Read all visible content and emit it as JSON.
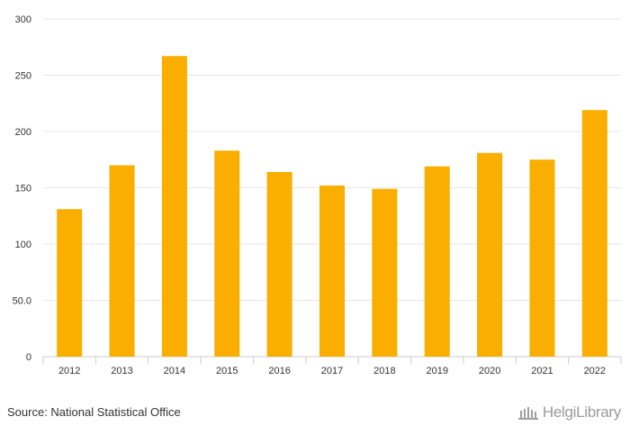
{
  "chart_data": {
    "type": "bar",
    "categories": [
      "2012",
      "2013",
      "2014",
      "2015",
      "2016",
      "2017",
      "2018",
      "2019",
      "2020",
      "2021",
      "2022"
    ],
    "values": [
      131,
      170,
      267,
      183,
      164,
      152,
      149,
      169,
      181,
      175,
      219
    ],
    "yticks": [
      "0",
      "50.0",
      "100",
      "150",
      "200",
      "250",
      "300"
    ],
    "ylim": [
      0,
      300
    ],
    "grid": true,
    "bar_color": "#F9AE00"
  },
  "footer": {
    "source": "Source: National Statistical Office",
    "logo_text": "HelgiLibrary",
    "logo_icon": "library-building-icon"
  }
}
